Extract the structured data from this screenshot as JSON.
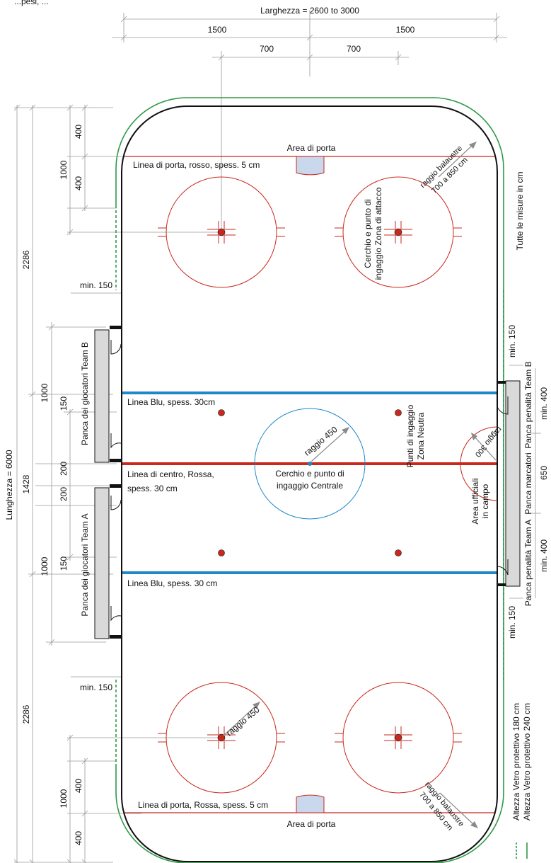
{
  "header": {
    "cut_text": "...pesi, ...",
    "width_label": "Larghezza = 2600 to 3000",
    "half_left": "1500",
    "half_right": "1500",
    "faceoff_left": "700",
    "faceoff_right": "700"
  },
  "left_dims": {
    "length_total": "Lunghezza = 6000",
    "zone_top": "2286",
    "zone_bottom": "2286",
    "neutral": "1428",
    "goal_top": "1000",
    "goal_top_a": "400",
    "goal_top_b": "400",
    "goal_bottom": "1000",
    "goal_bottom_a": "400",
    "goal_bottom_b": "400",
    "bench_b": "1000",
    "bench_b_gap": "150",
    "bench_a": "1000",
    "bench_a_gap": "150",
    "center_a": "200",
    "center_b": "200",
    "min_top": "min. 150",
    "min_bottom": "min. 150"
  },
  "rink_labels": {
    "goal_area_top": "Area di porta",
    "goal_line_top": "Linea di porta, rosso, spess. 5 cm",
    "attack_zone": [
      "Cerchio e punto di",
      "ingaggio Zona di attacco"
    ],
    "boards_radius_top": [
      "raggio balaustre",
      "700 a 850 cm"
    ],
    "blue_line_top": "Linea Blu, spess. 30cm",
    "neutral_points": [
      "Punti di ingaggio",
      "Zona Neutra"
    ],
    "center_radius": "raggio 450",
    "center_line": [
      "Linea di centro, Rossa,",
      "spess. 30 cm"
    ],
    "center_circle": [
      "Cerchio e punto di",
      "ingaggio Centrale"
    ],
    "referee_radius": "raggio 300",
    "referee_area": [
      "Area ufficiali",
      "in campo"
    ],
    "blue_line_bottom": "Linea Blu, spess. 30 cm",
    "radius_bottom": "raggio 450",
    "boards_radius_bottom": [
      "raggio balaustre",
      "700 a 850 cm"
    ],
    "goal_line_bottom": "Linea di porta, Rossa, spess. 5 cm",
    "goal_area_bottom": "Area di porta"
  },
  "benches": {
    "team_b": "Panca dei giocatori Team B",
    "team_a": "Panca dei giocatori Team A"
  },
  "right_labels": {
    "units": "Tutte le misure in cm",
    "min_top": "min. 150",
    "min_bottom": "min. 150",
    "penalty_b": "Panca penalità Team B",
    "scorers": "Panca marcatori",
    "penalty_a": "Panca penalità Team A",
    "min400_top": "min. 400",
    "span650": "650",
    "min400_bottom": "min. 400"
  },
  "legend": {
    "glass_180": "Altezza Vetro protettivo 180 cm",
    "glass_240": "Altezza Vetro protettivo 240 cm"
  },
  "colors": {
    "red_line": "#c9281d",
    "blue_line": "#1e88c8",
    "glass_green": "#2e9a47",
    "bench_fill": "#d9d9d9",
    "goal_crease": "#c9d8ec"
  }
}
